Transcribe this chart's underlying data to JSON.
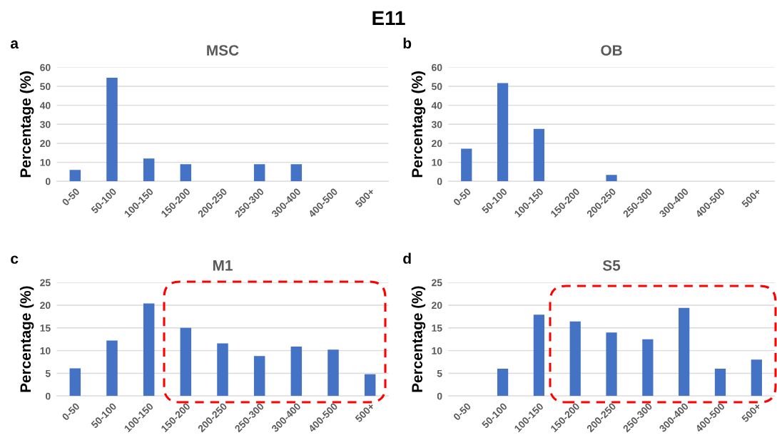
{
  "chart_data": [
    {
      "type": "bar",
      "title": "MSC",
      "ylabel": "Percentage (%)",
      "annotations": [
        "E11",
        "a"
      ],
      "categories": [
        "0-50",
        "50-100",
        "100-150",
        "150-200",
        "200-250",
        "250-300",
        "300-400",
        "400-500",
        "500+"
      ],
      "values": [
        6,
        54.5,
        12,
        9,
        0,
        9,
        9,
        0,
        0
      ],
      "color": "#4472c4",
      "ylim": [
        0,
        60
      ],
      "yticks": [
        0,
        10,
        20,
        30,
        40,
        50,
        60
      ],
      "grid": "y"
    },
    {
      "type": "bar",
      "title": "OB",
      "ylabel": "Percentage (%)",
      "annotations": [
        "b"
      ],
      "categories": [
        "0-50",
        "50-100",
        "100-150",
        "150-200",
        "200-250",
        "250-300",
        "300-400",
        "400-500",
        "500+"
      ],
      "values": [
        17.2,
        51.7,
        27.6,
        0,
        3.4,
        0,
        0,
        0,
        0
      ],
      "color": "#4472c4",
      "ylim": [
        0,
        60
      ],
      "yticks": [
        0,
        10,
        20,
        30,
        40,
        50,
        60
      ],
      "grid": "y"
    },
    {
      "type": "bar",
      "title": "M1",
      "ylabel": "Percentage (%)",
      "annotations": [
        "c"
      ],
      "categories": [
        "0-50",
        "50-100",
        "100-150",
        "150-200",
        "200-250",
        "250-300",
        "300-400",
        "400-500",
        "500+"
      ],
      "values": [
        6.1,
        12.2,
        20.4,
        15,
        11.6,
        8.8,
        10.9,
        10.2,
        4.8
      ],
      "color": "#4472c4",
      "ylim": [
        0,
        25
      ],
      "yticks": [
        0,
        5,
        10,
        15,
        20,
        25
      ],
      "grid": "y"
    },
    {
      "type": "bar",
      "title": "S5",
      "ylabel": "Percentage (%)",
      "annotations": [
        "d"
      ],
      "categories": [
        "0-50",
        "50-100",
        "100-150",
        "150-200",
        "200-250",
        "250-300",
        "300-400",
        "400-500",
        "500+"
      ],
      "values": [
        0,
        6,
        17.9,
        16.4,
        14,
        12.5,
        19.4,
        6,
        8
      ],
      "color": "#4472c4",
      "ylim": [
        0,
        25
      ],
      "yticks": [
        0,
        5,
        10,
        15,
        20,
        25
      ],
      "grid": "y"
    }
  ]
}
